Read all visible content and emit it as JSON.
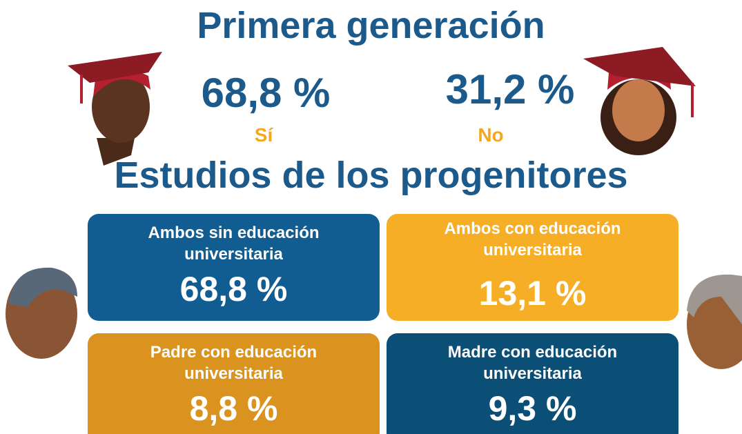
{
  "header": {
    "title": "Primera generación"
  },
  "first_generation": {
    "items": [
      {
        "value": "68,8 %",
        "label": "Sí"
      },
      {
        "value": "31,2 %",
        "label": "No"
      }
    ]
  },
  "parents": {
    "title": "Estudios de los progenitores",
    "cards": [
      {
        "label": "Ambos sin educación universitaria",
        "value": "68,8 %"
      },
      {
        "label": "Ambos con educación universitaria",
        "value": "13,1 %"
      },
      {
        "label": "Padre con educación universitaria",
        "value": "8,8 %"
      },
      {
        "label": "Madre con educación universitaria",
        "value": "9,3 %"
      }
    ]
  }
}
